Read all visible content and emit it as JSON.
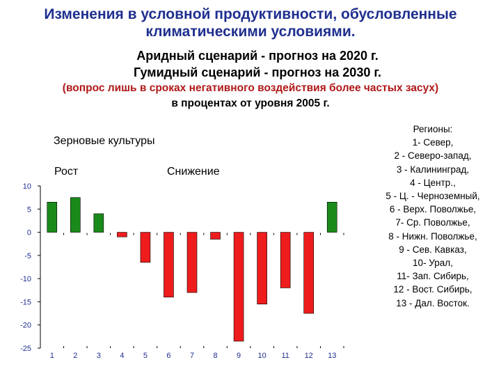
{
  "header": {
    "title_line1": "Изменения в условной продуктивности, обусловленные",
    "title_line2": "климатическими условиями.",
    "scenario_arid": "Аридный сценарий - прогноз на 2020 г.",
    "scenario_humid": "Гумидный сценарий - прогноз на 2030 г.",
    "note": "(вопрос лишь в сроках негативного воздействия более частых засух)",
    "units_note": "в процентах от уровня 2005 г."
  },
  "chart_heading": "Зерновые культуры",
  "legend": {
    "growth": "Рост",
    "decline": "Снижение"
  },
  "regions": {
    "title": "Регионы:",
    "items": [
      "1- Север,",
      "2 - Северо-запад,",
      "3 - Калининград,",
      "4 - Центр.,",
      "5 - Ц. - Черноземный,",
      "6 - Верх. Поволжье,",
      "7- Ср. Поволжье,",
      "8 - Нижн. Поволжье,",
      "9 - Сев. Кавказ,",
      "10- Урал,",
      "11- Зап. Сибирь,",
      "12 - Вост. Сибирь,",
      "13 - Дал. Восток."
    ]
  },
  "colors": {
    "growth": "#1a8a1a",
    "decline": "#ee1c1c",
    "axis_labels": "#1f2f8f"
  },
  "chart_data": {
    "type": "bar",
    "categories": [
      "1",
      "2",
      "3",
      "4",
      "5",
      "6",
      "7",
      "8",
      "9",
      "10",
      "11",
      "12",
      "13"
    ],
    "values": [
      6.5,
      7.5,
      4,
      -1,
      -6.5,
      -14,
      -13,
      -1.5,
      -23.5,
      -15.5,
      -12,
      -17.5,
      6.5
    ],
    "yticks": [
      10,
      5,
      0,
      -5,
      -10,
      -15,
      -20,
      -25
    ],
    "ylim": [
      -25,
      10
    ],
    "grid": false
  }
}
